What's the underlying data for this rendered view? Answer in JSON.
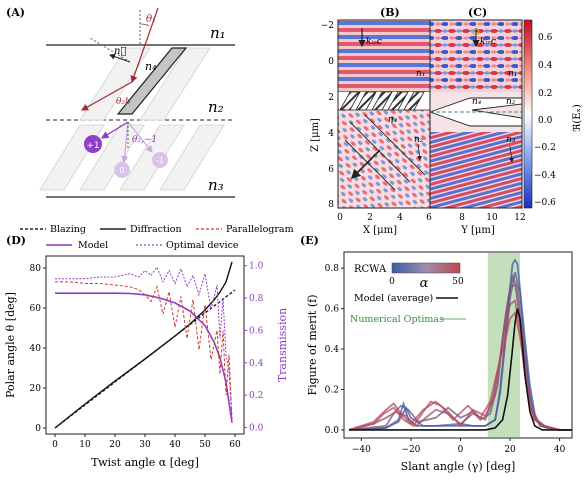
{
  "panels": {
    "A": {
      "label": "(A)",
      "n1": "n₁",
      "n2": "n₂",
      "n3": "n₃",
      "n4": "n₄",
      "nvec": "n⃗",
      "theta1": "θ₁",
      "theta2b": "θ₂b",
      "theta21": "θ₂,−1",
      "orders": [
        "+1",
        "0",
        "-1"
      ]
    },
    "B": {
      "label": "(B)",
      "kinc": "kᵢₙc",
      "n1": "n₁",
      "n2": "n₂",
      "n4": "n₄",
      "ylabel": "Z [μm]",
      "xlabel": "X [μm]",
      "yticks": [
        "−2",
        "0",
        "2",
        "4",
        "6",
        "8"
      ],
      "xticks": [
        "0",
        "2",
        "4",
        "6"
      ]
    },
    "C": {
      "label": "(C)",
      "kinc": "kᵢₙc",
      "n1": "n₁",
      "n2": "n₂",
      "n3": "n₃",
      "n4": "n₄",
      "xlabel": "Y [μm]",
      "xticks": [
        "8",
        "10",
        "12"
      ],
      "cbar_label": "ℜ(Eₓ)",
      "cbar_ticks": [
        "0.6",
        "0.4",
        "0.2",
        "0.0",
        "−0.2",
        "−0.4",
        "−0.6"
      ]
    },
    "D": {
      "label": "(D)",
      "legend": [
        "Blazing",
        "Diffraction",
        "Parallelogram",
        "Model",
        "Optimal device"
      ],
      "xlabel": "Twist angle α [deg]",
      "ylabel": "Polar angle θ [deg]",
      "y2label": "Transmission",
      "xticks": [
        "0",
        "10",
        "20",
        "30",
        "40",
        "50",
        "60"
      ],
      "yticks": [
        "0",
        "20",
        "40",
        "60",
        "80"
      ],
      "y2ticks": [
        "0.0",
        "0.2",
        "0.4",
        "0.6",
        "0.8",
        "1.0"
      ]
    },
    "E": {
      "label": "(E)",
      "rcwa": "RCWA",
      "alpha": "α",
      "cbar_min": "0",
      "cbar_max": "50",
      "model_label": "Model (average)",
      "numopt_label": "Numerical Optimas",
      "xlabel": "Slant angle (γ) [deg]",
      "ylabel": "Figure of merit (f)",
      "xticks": [
        "−40",
        "−20",
        "0",
        "20",
        "40"
      ],
      "yticks": [
        "0.0",
        "0.2",
        "0.4",
        "0.6",
        "0.8"
      ]
    }
  },
  "chart_data": [
    {
      "panel": "D",
      "type": "line",
      "xlim": [
        -3,
        63
      ],
      "ylim": [
        -3,
        86
      ],
      "y2lim": [
        -0.04,
        1.06
      ],
      "series": [
        {
          "name": "Blazing",
          "axis": "left",
          "x": [
            0,
            10,
            20,
            30,
            40,
            50,
            60
          ],
          "y": [
            0,
            11.5,
            23,
            34.5,
            46,
            57.5,
            69
          ]
        },
        {
          "name": "Diffraction",
          "axis": "left",
          "x": [
            0,
            10,
            20,
            30,
            40,
            45,
            50,
            53,
            55,
            57,
            59
          ],
          "y": [
            0,
            12,
            23.5,
            34.5,
            46,
            52,
            59,
            64,
            68,
            73,
            83
          ]
        },
        {
          "name": "Model",
          "axis": "right",
          "x": [
            0,
            10,
            20,
            25,
            30,
            35,
            40,
            45,
            50,
            53,
            55,
            57,
            59
          ],
          "y": [
            0.83,
            0.83,
            0.83,
            0.828,
            0.82,
            0.8,
            0.77,
            0.72,
            0.63,
            0.53,
            0.43,
            0.28,
            0.03
          ]
        },
        {
          "name": "Optimal device",
          "axis": "right",
          "x": [
            0,
            5,
            10,
            15,
            20,
            25,
            28,
            30,
            32,
            34,
            36,
            38,
            40,
            42,
            44,
            46,
            48,
            50,
            52,
            54,
            55,
            56,
            57,
            58,
            59
          ],
          "y": [
            0.92,
            0.92,
            0.92,
            0.93,
            0.93,
            0.95,
            0.93,
            0.97,
            0.94,
            0.99,
            0.9,
            0.97,
            0.89,
            0.98,
            0.87,
            0.94,
            0.82,
            0.95,
            0.73,
            0.88,
            0.55,
            0.8,
            0.45,
            0.35,
            0.05
          ]
        },
        {
          "name": "Parallelogram",
          "axis": "right",
          "x": [
            0,
            5,
            10,
            15,
            20,
            25,
            28,
            30,
            32,
            34,
            36,
            38,
            40,
            42,
            44,
            46,
            48,
            50,
            52,
            54,
            55,
            56,
            57,
            58,
            59
          ],
          "y": [
            0.9,
            0.9,
            0.89,
            0.89,
            0.88,
            0.87,
            0.85,
            0.82,
            0.78,
            0.87,
            0.7,
            0.84,
            0.62,
            0.81,
            0.55,
            0.79,
            0.48,
            0.76,
            0.42,
            0.6,
            0.33,
            0.6,
            0.2,
            0.45,
            0.05
          ]
        }
      ]
    },
    {
      "panel": "E",
      "type": "line",
      "xlim": [
        -47,
        45
      ],
      "ylim": [
        -0.04,
        0.88
      ],
      "highlight_x": [
        11,
        24
      ],
      "model": {
        "x": [
          -45,
          0,
          10,
          14,
          17,
          19,
          21,
          22,
          23,
          24,
          25,
          26,
          28,
          30,
          33,
          40,
          45
        ],
        "y": [
          0,
          0,
          0,
          0.01,
          0.05,
          0.17,
          0.4,
          0.53,
          0.6,
          0.55,
          0.42,
          0.27,
          0.09,
          0.02,
          0,
          0,
          0
        ]
      },
      "rcwa_curves": [
        {
          "alpha": 0,
          "x": [
            -45,
            -30,
            -25,
            -23,
            -21,
            -18,
            -10,
            0,
            5,
            10,
            14,
            16,
            18,
            20,
            21,
            22,
            23,
            24,
            26,
            28,
            30,
            32,
            35,
            40,
            45
          ],
          "y": [
            0,
            0.01,
            0.05,
            0.13,
            0.05,
            0.02,
            0.02,
            0.02,
            0.02,
            0.02,
            0.05,
            0.2,
            0.45,
            0.7,
            0.82,
            0.84,
            0.82,
            0.7,
            0.45,
            0.22,
            0.08,
            0.02,
            0.01,
            0,
            0
          ]
        },
        {
          "alpha": 10,
          "x": [
            -45,
            -30,
            -25,
            -22,
            -20,
            -15,
            -10,
            0,
            5,
            10,
            14,
            16,
            18,
            20,
            22,
            24,
            26,
            28,
            30,
            33,
            40,
            45
          ],
          "y": [
            0,
            0.01,
            0.04,
            0.11,
            0.06,
            0.02,
            0.02,
            0.03,
            0.02,
            0.02,
            0.05,
            0.18,
            0.42,
            0.65,
            0.78,
            0.68,
            0.4,
            0.18,
            0.06,
            0.02,
            0,
            0
          ]
        },
        {
          "alpha": 20,
          "x": [
            -45,
            -30,
            -27,
            -24,
            -21,
            -17,
            -10,
            -5,
            0,
            5,
            8,
            12,
            15,
            17,
            19,
            21,
            23,
            25,
            27,
            29,
            31,
            35,
            40,
            45
          ],
          "y": [
            0,
            0.02,
            0.08,
            0.12,
            0.1,
            0.04,
            0.06,
            0.11,
            0.06,
            0.09,
            0.05,
            0.08,
            0.22,
            0.45,
            0.63,
            0.76,
            0.7,
            0.48,
            0.26,
            0.1,
            0.04,
            0.01,
            0,
            0
          ]
        },
        {
          "alpha": 30,
          "x": [
            -45,
            -35,
            -30,
            -26,
            -22,
            -18,
            -14,
            -10,
            -5,
            0,
            5,
            10,
            13,
            16,
            18,
            20,
            22,
            24,
            26,
            28,
            30,
            33,
            40,
            45
          ],
          "y": [
            0,
            0.03,
            0.06,
            0.09,
            0.07,
            0.02,
            0.06,
            0.1,
            0.08,
            0.03,
            0.08,
            0.05,
            0.15,
            0.36,
            0.55,
            0.7,
            0.72,
            0.55,
            0.32,
            0.12,
            0.05,
            0.02,
            0,
            0
          ]
        },
        {
          "alpha": 40,
          "x": [
            -45,
            -35,
            -30,
            -27,
            -24,
            -20,
            -15,
            -10,
            -5,
            0,
            5,
            10,
            14,
            16,
            18,
            20,
            22,
            24,
            26,
            28,
            30,
            34,
            40,
            45
          ],
          "y": [
            0,
            0.04,
            0.1,
            0.13,
            0.08,
            0.03,
            0.1,
            0.14,
            0.09,
            0.02,
            0.1,
            0.07,
            0.18,
            0.35,
            0.5,
            0.62,
            0.64,
            0.5,
            0.28,
            0.12,
            0.06,
            0.02,
            0,
            0
          ]
        },
        {
          "alpha": 50,
          "x": [
            -45,
            -35,
            -31,
            -27,
            -23,
            -19,
            -15,
            -12,
            -8,
            -3,
            3,
            8,
            12,
            15,
            18,
            20,
            22,
            24,
            26,
            28,
            30,
            34,
            40,
            45
          ],
          "y": [
            0,
            0.03,
            0.08,
            0.11,
            0.05,
            0.02,
            0.09,
            0.14,
            0.12,
            0.05,
            0.12,
            0.06,
            0.14,
            0.3,
            0.44,
            0.55,
            0.58,
            0.46,
            0.28,
            0.12,
            0.05,
            0.02,
            0,
            0
          ]
        }
      ]
    }
  ],
  "colors": {
    "purple": "#8e3ec9",
    "lightpurple": "#c9a7e3",
    "red": "#d03a2a",
    "darkred": "#a52a36",
    "highlight": "#b9d9b0",
    "rcwa_low": "#3b5ba5",
    "rcwa_high": "#c2474f"
  }
}
